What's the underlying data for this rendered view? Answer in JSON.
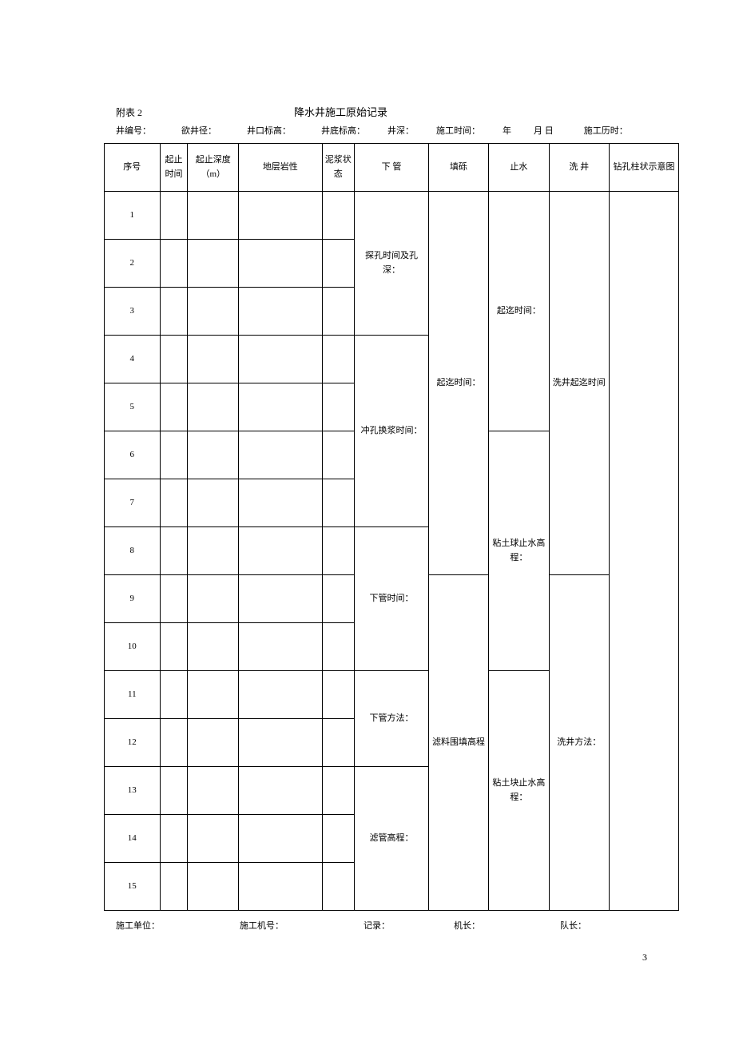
{
  "header": {
    "attachment": "附表 2",
    "title": "降水井施工原始记录"
  },
  "info": {
    "well_no": "井编号：",
    "diameter": "欲井径：",
    "top_elev": "井口标高：",
    "bottom_elev": "井底标高：",
    "depth": "井深：",
    "time": "施工时间：",
    "year": "年",
    "month_day": "月   日",
    "duration": "施工历时："
  },
  "columns": {
    "seq": "序号",
    "time": "起止时间",
    "depth": "起止深度（m）",
    "rock": "地层岩性",
    "mud": "泥浆状态",
    "pipe": "下  管",
    "fill": "填砾",
    "stop": "止水",
    "wash": "洗  井",
    "drill": "钻孔柱状示意图"
  },
  "rows": [
    "1",
    "2",
    "3",
    "4",
    "5",
    "6",
    "7",
    "8",
    "9",
    "10",
    "11",
    "12",
    "13",
    "14",
    "15"
  ],
  "merged": {
    "pipe_1": "探孔时间及孔深：",
    "pipe_2": "冲孔换浆时间：",
    "pipe_3": "下管时间：",
    "pipe_4": "下管方法：",
    "pipe_5": "滤管高程：",
    "fill_1": "起迄时间：",
    "fill_2": "滤料围填高程",
    "stop_1": "起迄时间：",
    "stop_2": "粘土球止水高程：",
    "stop_3": "粘土块止水高程：",
    "wash_1": "洗井起迄时间",
    "wash_2": "洗井方法："
  },
  "footer": {
    "unit": "施工单位：",
    "machine": "施工机号：",
    "record": "记录：",
    "chief": "机长：",
    "leader": "队长："
  },
  "page": "3"
}
